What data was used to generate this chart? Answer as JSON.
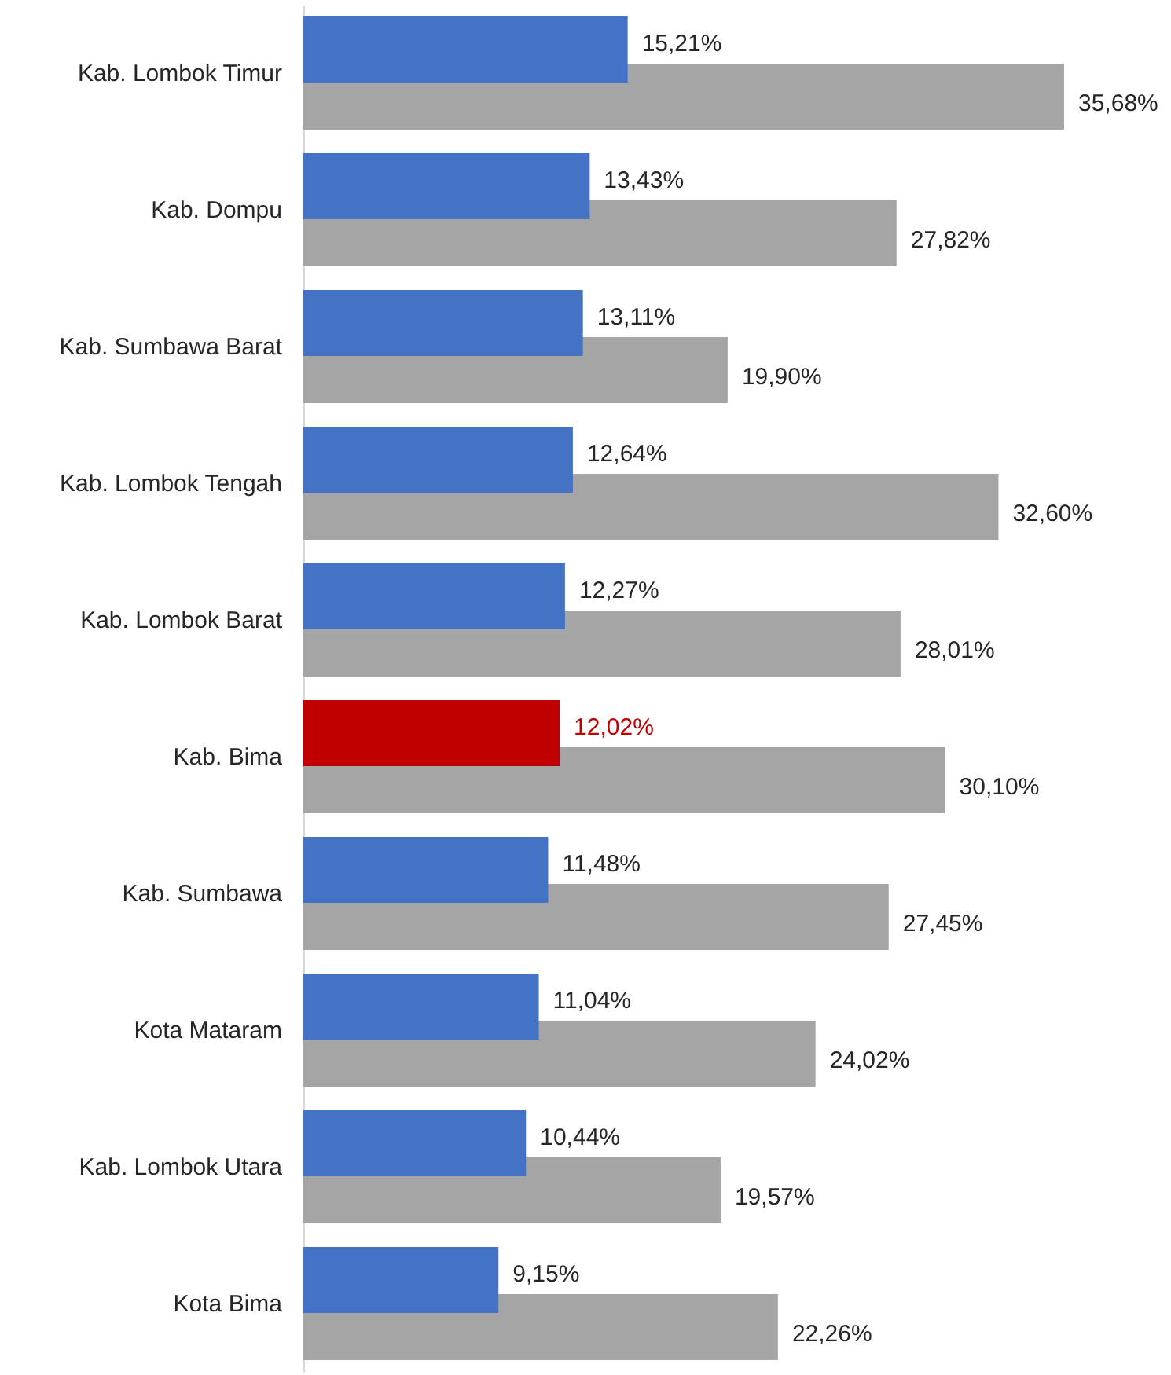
{
  "chart_data": {
    "type": "bar",
    "orientation": "horizontal",
    "categories": [
      "Kab. Lombok Timur",
      "Kab. Dompu",
      "Kab. Sumbawa Barat",
      "Kab. Lombok Tengah",
      "Kab. Lombok Barat",
      "Kab. Bima",
      "Kab. Sumbawa",
      "Kota Mataram",
      "Kab. Lombok Utara",
      "Kota Bima"
    ],
    "series": [
      {
        "color": "#4472c4",
        "colors": [
          "#4472c4",
          "#4472c4",
          "#4472c4",
          "#4472c4",
          "#4472c4",
          "#c00000",
          "#4472c4",
          "#4472c4",
          "#4472c4",
          "#4472c4"
        ],
        "values": [
          15.21,
          13.43,
          13.11,
          12.64,
          12.27,
          12.02,
          11.48,
          11.04,
          10.44,
          9.15
        ],
        "value_labels": [
          "15,21%",
          "13,43%",
          "13,11%",
          "12,64%",
          "12,27%",
          "12,02%",
          "11,48%",
          "11,04%",
          "10,44%",
          "9,15%"
        ]
      },
      {
        "color": "#a5a5a5",
        "colors": [
          "#a5a5a5",
          "#a5a5a5",
          "#a5a5a5",
          "#a5a5a5",
          "#a5a5a5",
          "#a5a5a5",
          "#a5a5a5",
          "#a5a5a5",
          "#a5a5a5",
          "#a5a5a5"
        ],
        "values": [
          35.68,
          27.82,
          19.9,
          32.6,
          28.01,
          30.1,
          27.45,
          24.02,
          19.57,
          22.26
        ],
        "value_labels": [
          "35,68%",
          "27,82%",
          "19,90%",
          "32,60%",
          "28,01%",
          "30,10%",
          "27,45%",
          "24,02%",
          "19,57%",
          "22,26%"
        ]
      }
    ]
  }
}
